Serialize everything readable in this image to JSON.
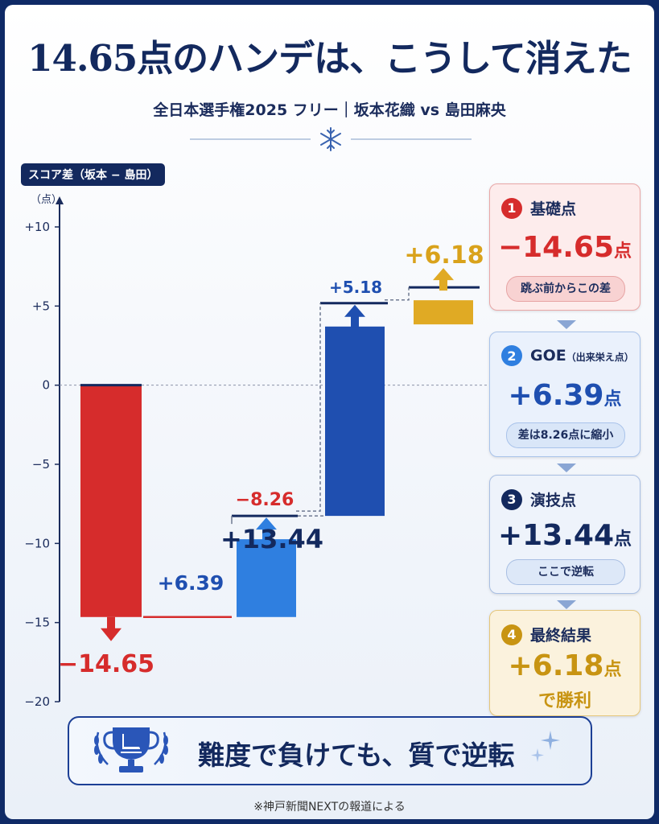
{
  "title": "14.65点のハンデは、こうして消えた",
  "subtitle": "全日本選手権2025 フリー｜坂本花織 vs 島田麻央",
  "icons": {
    "divider": "snowflake-icon",
    "banner": "skate-trophy-icon",
    "decor": "sparkle-icon"
  },
  "colors": {
    "negative": "#d62c2c",
    "goe": "#2f7fe0",
    "program": "#1f4fb0",
    "final": "#e0aa24",
    "navy": "#13295e"
  },
  "chart_data": {
    "type": "waterfall",
    "ylabel": "スコア差（坂本 − 島田）",
    "unit": "（点）",
    "ylim": [
      -20,
      10
    ],
    "yticks": [
      10,
      5,
      0,
      -5,
      -10,
      -15,
      -20
    ],
    "ytick_labels": [
      "+10",
      "+5",
      "0",
      "−5",
      "−10",
      "−15",
      "−20"
    ],
    "steps": [
      {
        "label": "−14.65",
        "start": 0,
        "end": -14.65,
        "color": "#d62c2c"
      },
      {
        "label": "+6.39",
        "start": -14.65,
        "end": -8.26,
        "color": "#2f7fe0"
      },
      {
        "label": "+13.44",
        "start": -8.26,
        "end": 5.18,
        "color": "#1f4fb0"
      },
      {
        "label": "+6.18",
        "start": 5.18,
        "end": 6.18,
        "color": "#e0aa24"
      }
    ],
    "running_labels": [
      "−8.26",
      "+5.18"
    ]
  },
  "steps_panel": [
    {
      "num": "1",
      "label": "基礎点",
      "label_small": "",
      "value": "−14.65",
      "unit": "点",
      "note": "跳ぶ前からこの差",
      "note2": ""
    },
    {
      "num": "2",
      "label": "GOE",
      "label_small": "（出来栄え点）",
      "value": "+6.39",
      "unit": "点",
      "note": "差は8.26点に縮小",
      "note2": ""
    },
    {
      "num": "3",
      "label": "演技点",
      "label_small": "",
      "value": "+13.44",
      "unit": "点",
      "note": "ここで逆転",
      "note2": ""
    },
    {
      "num": "4",
      "label": "最終結果",
      "label_small": "",
      "value": "+6.18",
      "unit": "点",
      "note": "",
      "note2": "で勝利"
    }
  ],
  "banner": "難度で負けても、質で逆転",
  "source": "※神戸新聞NEXTの報道による"
}
